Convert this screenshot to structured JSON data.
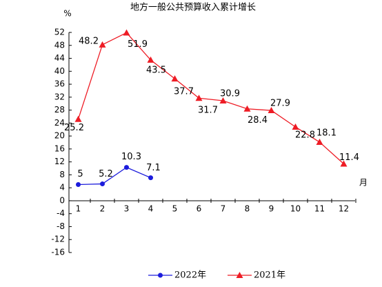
{
  "chart_data": {
    "type": "line",
    "title": "地方一般公共预算收入累计增长",
    "y_label": "%",
    "x_label": "月",
    "categories": [
      "1",
      "2",
      "3",
      "4",
      "5",
      "6",
      "7",
      "8",
      "9",
      "10",
      "11",
      "12"
    ],
    "series": [
      {
        "name": "2022年",
        "color": "#1c1cdc",
        "marker": "circle",
        "values": [
          5,
          5.2,
          10.3,
          7.1,
          null,
          null,
          null,
          null,
          null,
          null,
          null,
          null
        ]
      },
      {
        "name": "2021年",
        "color": "#ee1c25",
        "marker": "triangle",
        "values": [
          25.2,
          48.2,
          51.9,
          43.5,
          37.7,
          31.7,
          30.9,
          28.4,
          27.9,
          22.8,
          18.1,
          11.4
        ]
      }
    ],
    "ylim": [
      -16,
      52
    ],
    "yticks": [
      -16,
      -12,
      -8,
      -4,
      0,
      4,
      8,
      12,
      16,
      20,
      24,
      28,
      32,
      36,
      40,
      44,
      48,
      52
    ],
    "grid": false,
    "legend": "bottom"
  }
}
